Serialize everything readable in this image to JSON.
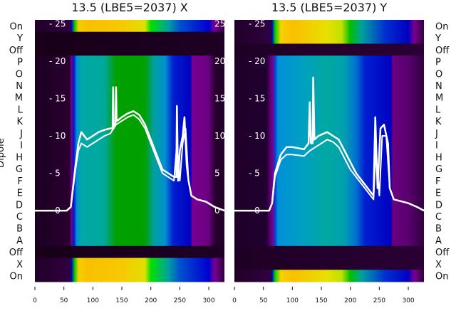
{
  "chart_data": [
    {
      "type": "heatmap",
      "title": "13.5 (LBE5=2037) X",
      "ylabel": "Dipole",
      "row_labels": [
        "On",
        "Y",
        "Off",
        "P",
        "O",
        "N",
        "M",
        "L",
        "K",
        "J",
        "I",
        "H",
        "G",
        "F",
        "E",
        "D",
        "C",
        "B",
        "A",
        "Off",
        "X",
        "On"
      ],
      "row_profiles": [
        "on",
        "off",
        "off",
        "main",
        "main",
        "main",
        "main",
        "main",
        "main",
        "main",
        "main",
        "main",
        "main",
        "main",
        "main",
        "main",
        "main",
        "main",
        "main",
        "off",
        "on",
        "on"
      ],
      "x_ticks": [
        0,
        50,
        100,
        150,
        200,
        250,
        300
      ],
      "xlim": [
        0,
        327
      ],
      "overlay_y_ticks": [
        0,
        5,
        10,
        15,
        20,
        25
      ],
      "overlay_ylim": [
        -9.5,
        25.5
      ],
      "profiles": {
        "main": [
          [
            0,
            "#1a0020"
          ],
          [
            60,
            "#2a0030"
          ],
          [
            63,
            "#7a0090"
          ],
          [
            67,
            "#0010d0"
          ],
          [
            72,
            "#0090d0"
          ],
          [
            80,
            "#00a8a8"
          ],
          [
            120,
            "#00a89a"
          ],
          [
            140,
            "#00a000"
          ],
          [
            190,
            "#00a000"
          ],
          [
            205,
            "#00a0a0"
          ],
          [
            225,
            "#0090d0"
          ],
          [
            238,
            "#0020d0"
          ],
          [
            268,
            "#0000c0"
          ],
          [
            272,
            "#7a0090"
          ],
          [
            300,
            "#6a0080"
          ],
          [
            310,
            "#2a0030"
          ],
          [
            327,
            "#200028"
          ]
        ],
        "on": [
          [
            0,
            "#200028"
          ],
          [
            60,
            "#300040"
          ],
          [
            63,
            "#0000c0"
          ],
          [
            68,
            "#00c000"
          ],
          [
            75,
            "#f0d000"
          ],
          [
            90,
            "#f8c000"
          ],
          [
            150,
            "#f8c800"
          ],
          [
            190,
            "#e0e000"
          ],
          [
            200,
            "#00e000"
          ],
          [
            230,
            "#00a0a0"
          ],
          [
            250,
            "#0050d0"
          ],
          [
            300,
            "#0000d0"
          ],
          [
            310,
            "#7a0090"
          ],
          [
            327,
            "#300040"
          ]
        ],
        "off": [
          [
            0,
            "#180018"
          ],
          [
            327,
            "#1e0024"
          ]
        ]
      },
      "series": [
        {
          "name": "trace-1",
          "x": [
            0,
            55,
            62,
            70,
            75,
            80,
            90,
            100,
            110,
            120,
            130,
            134,
            135,
            136,
            137,
            139,
            140,
            141,
            142,
            150,
            160,
            170,
            180,
            190,
            200,
            210,
            220,
            230,
            240,
            244,
            245,
            247,
            250,
            255,
            258,
            262,
            265,
            270,
            280,
            295,
            310,
            327
          ],
          "y": [
            0,
            0,
            0.5,
            6,
            9,
            10.5,
            9.5,
            10,
            10.5,
            10.8,
            11,
            11,
            16.5,
            11,
            11.5,
            11.5,
            16.5,
            12,
            12,
            12.5,
            13,
            13.3,
            12.8,
            11.5,
            9.5,
            7.5,
            5.5,
            5,
            4.5,
            4.5,
            14,
            4,
            8,
            10,
            12.5,
            6,
            4,
            2,
            1.5,
            1.2,
            0.5,
            0
          ]
        },
        {
          "name": "trace-2",
          "x": [
            0,
            55,
            62,
            70,
            75,
            80,
            90,
            100,
            110,
            120,
            130,
            140,
            150,
            160,
            170,
            180,
            190,
            200,
            210,
            220,
            230,
            240,
            245,
            250,
            255,
            260,
            265,
            270,
            280,
            295,
            310,
            327
          ],
          "y": [
            0,
            0,
            0.5,
            5.5,
            8,
            9,
            8.5,
            9,
            9.5,
            10,
            10.3,
            11.5,
            12,
            12.5,
            12.8,
            12.2,
            11,
            9,
            7,
            5,
            4.5,
            4,
            9,
            4,
            9,
            11,
            4,
            2,
            1.5,
            1.2,
            0.5,
            0
          ]
        }
      ]
    },
    {
      "type": "heatmap",
      "title": "13.5 (LBE5=2037) Y",
      "row_labels": [
        "On",
        "Y",
        "Off",
        "P",
        "O",
        "N",
        "M",
        "L",
        "K",
        "J",
        "I",
        "H",
        "G",
        "F",
        "E",
        "D",
        "C",
        "B",
        "A",
        "Off",
        "X",
        "On"
      ],
      "row_profiles": [
        "on",
        "on",
        "off",
        "main",
        "main",
        "main",
        "main",
        "main",
        "main",
        "main",
        "main",
        "main",
        "main",
        "main",
        "main",
        "main",
        "main",
        "main",
        "main",
        "off",
        "off",
        "on"
      ],
      "x_ticks": [
        0,
        50,
        100,
        150,
        200,
        250,
        300
      ],
      "xlim": [
        0,
        327
      ],
      "overlay_y_ticks": [
        0,
        5,
        10,
        15,
        20,
        25
      ],
      "overlay_ylim": [
        -9.5,
        25.5
      ],
      "profiles": {
        "main": [
          [
            0,
            "#200028"
          ],
          [
            55,
            "#200030"
          ],
          [
            62,
            "#5a0070"
          ],
          [
            66,
            "#7a0090"
          ],
          [
            70,
            "#0040d0"
          ],
          [
            75,
            "#0090d8"
          ],
          [
            120,
            "#00a0c0"
          ],
          [
            160,
            "#00a8a0"
          ],
          [
            190,
            "#00a0b0"
          ],
          [
            210,
            "#0070d0"
          ],
          [
            225,
            "#0020d0"
          ],
          [
            270,
            "#0000c0"
          ],
          [
            273,
            "#6a0080"
          ],
          [
            300,
            "#5a0070"
          ],
          [
            327,
            "#300040"
          ]
        ],
        "on": [
          [
            0,
            "#200028"
          ],
          [
            62,
            "#300040"
          ],
          [
            65,
            "#0000c0"
          ],
          [
            70,
            "#00d000"
          ],
          [
            80,
            "#f8d000"
          ],
          [
            100,
            "#f8c000"
          ],
          [
            160,
            "#e8e000"
          ],
          [
            185,
            "#c0e000"
          ],
          [
            200,
            "#00c000"
          ],
          [
            220,
            "#00a0a0"
          ],
          [
            260,
            "#0030d0"
          ],
          [
            300,
            "#0000c0"
          ],
          [
            310,
            "#7a0090"
          ],
          [
            327,
            "#300040"
          ]
        ],
        "off": [
          [
            0,
            "#1e0024"
          ],
          [
            327,
            "#2a0034"
          ]
        ]
      },
      "series": [
        {
          "name": "trace-1",
          "x": [
            0,
            60,
            65,
            70,
            80,
            90,
            100,
            120,
            128,
            130,
            132,
            135,
            136,
            138,
            145,
            160,
            170,
            180,
            190,
            200,
            210,
            220,
            230,
            240,
            243,
            247,
            252,
            258,
            265,
            268,
            275,
            300,
            315,
            327
          ],
          "y": [
            0,
            0,
            1,
            5,
            7.5,
            8.5,
            8.5,
            8.2,
            9,
            14.5,
            9,
            9,
            17.8,
            9.5,
            10,
            10.5,
            10,
            9.5,
            8,
            6.5,
            5,
            4,
            3,
            2,
            12.5,
            3,
            11,
            11.5,
            9,
            3,
            1.5,
            1,
            0.5,
            0
          ]
        },
        {
          "name": "trace-2",
          "x": [
            0,
            60,
            65,
            70,
            80,
            90,
            100,
            120,
            130,
            140,
            150,
            160,
            170,
            180,
            190,
            200,
            210,
            220,
            230,
            240,
            244,
            250,
            255,
            262,
            268,
            275,
            300,
            315,
            327
          ],
          "y": [
            0,
            0,
            1,
            4.5,
            6.8,
            7.5,
            7.5,
            7.3,
            8,
            8.5,
            9,
            9.5,
            9.2,
            8.5,
            7,
            5.5,
            4.5,
            3.5,
            2.5,
            1.5,
            8,
            2,
            10,
            10,
            3,
            1.5,
            1,
            0.5,
            0
          ]
        }
      ]
    }
  ]
}
